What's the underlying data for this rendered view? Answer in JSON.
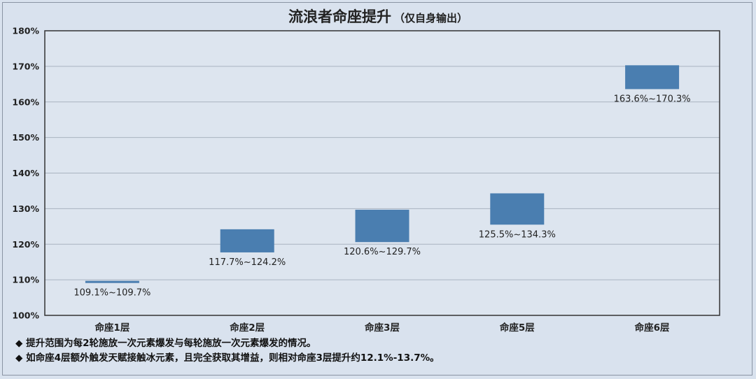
{
  "title": {
    "main": "流浪者命座提升",
    "sub": "（仅自身输出）"
  },
  "chart_data": {
    "type": "floating-bar",
    "categories": [
      "命座1层",
      "命座2层",
      "命座3层",
      "命座5层",
      "命座6层"
    ],
    "ranges": [
      [
        109.1,
        109.7
      ],
      [
        117.7,
        124.2
      ],
      [
        120.6,
        129.7
      ],
      [
        125.5,
        134.3
      ],
      [
        163.6,
        170.3
      ]
    ],
    "data_labels": [
      "109.1%~109.7%",
      "117.7%~124.2%",
      "120.6%~129.7%",
      "125.5%~134.3%",
      "163.6%~170.3%"
    ],
    "y_ticks": [
      "100%",
      "110%",
      "120%",
      "130%",
      "140%",
      "150%",
      "160%",
      "170%",
      "180%"
    ],
    "ylim": [
      100,
      180
    ],
    "grid": true,
    "bar_color": "#4a7eb0"
  },
  "notes": [
    "◆ 提升范围为每2轮施放一次元素爆发与每轮施放一次元素爆发的情况。",
    "◆ 如命座4层额外触发天赋接触冰元素，且完全获取其增益，则相对命座3层提升约12.1%-13.7%。"
  ]
}
